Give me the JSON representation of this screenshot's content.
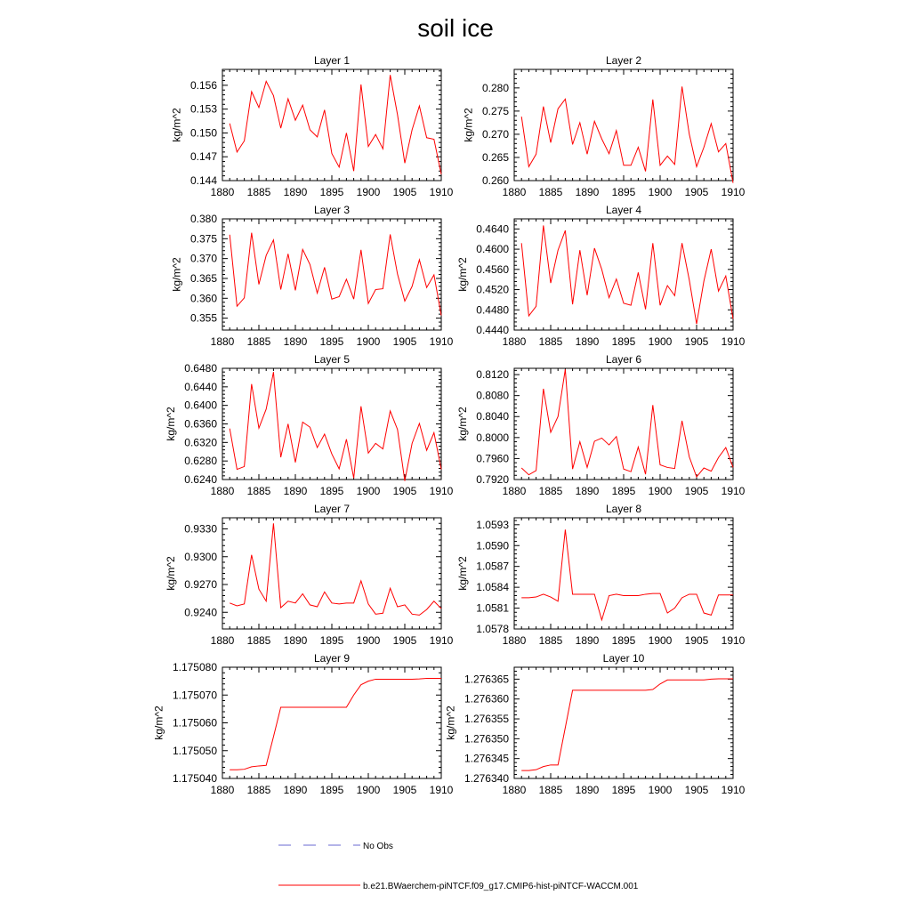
{
  "page": {
    "title": "soil ice"
  },
  "legend": {
    "obs_label": "No Obs",
    "obs_color": "#6a6ad0",
    "model_label": "b.e21.BWaerchem-piNTCF.f09_g17.CMIP6-hist-piNTCF-WACCM.001",
    "model_color": "#ff0000"
  },
  "chart_data": [
    {
      "type": "line",
      "title": "Layer 1",
      "ylabel": "kg/m^2",
      "xlim": [
        1880,
        1910
      ],
      "xticks": [
        "1880",
        "1885",
        "1890",
        "1895",
        "1900",
        "1905",
        "1910"
      ],
      "ylim": [
        0.144,
        0.158
      ],
      "yticks": [
        "0.144",
        "0.147",
        "0.150",
        "0.153",
        "0.156"
      ],
      "x": [
        1881,
        1882,
        1883,
        1884,
        1885,
        1886,
        1887,
        1888,
        1889,
        1890,
        1891,
        1892,
        1893,
        1894,
        1895,
        1896,
        1897,
        1898,
        1899,
        1900,
        1901,
        1902,
        1903,
        1904,
        1905,
        1906,
        1907,
        1908,
        1909,
        1910
      ],
      "series": [
        {
          "values": [
            0.1512,
            0.1476,
            0.149,
            0.1552,
            0.1532,
            0.1565,
            0.1547,
            0.1506,
            0.1543,
            0.1516,
            0.1535,
            0.1504,
            0.1495,
            0.1529,
            0.1474,
            0.1457,
            0.15,
            0.1452,
            0.1561,
            0.1483,
            0.1498,
            0.148,
            0.1573,
            0.1523,
            0.1462,
            0.1504,
            0.1534,
            0.1494,
            0.1492,
            0.1448
          ]
        }
      ]
    },
    {
      "type": "line",
      "title": "Layer 2",
      "ylabel": "kg/m^2",
      "xlim": [
        1880,
        1910
      ],
      "xticks": [
        "1880",
        "1885",
        "1890",
        "1895",
        "1900",
        "1905",
        "1910"
      ],
      "ylim": [
        0.26,
        0.284
      ],
      "yticks": [
        "0.260",
        "0.265",
        "0.270",
        "0.275",
        "0.280"
      ],
      "x": [
        1881,
        1882,
        1883,
        1884,
        1885,
        1886,
        1887,
        1888,
        1889,
        1890,
        1891,
        1892,
        1893,
        1894,
        1895,
        1896,
        1897,
        1898,
        1899,
        1900,
        1901,
        1902,
        1903,
        1904,
        1905,
        1906,
        1907,
        1908,
        1909,
        1910
      ],
      "series": [
        {
          "values": [
            0.2738,
            0.263,
            0.2657,
            0.276,
            0.2682,
            0.2755,
            0.2776,
            0.2678,
            0.2725,
            0.2657,
            0.2728,
            0.269,
            0.2658,
            0.2708,
            0.2633,
            0.2633,
            0.2672,
            0.262,
            0.2775,
            0.2633,
            0.2653,
            0.2635,
            0.2803,
            0.27,
            0.263,
            0.2672,
            0.2723,
            0.2662,
            0.268,
            0.2595
          ]
        }
      ]
    },
    {
      "type": "line",
      "title": "Layer 3",
      "ylabel": "kg/m^2",
      "xlim": [
        1880,
        1910
      ],
      "xticks": [
        "1880",
        "1885",
        "1890",
        "1895",
        "1900",
        "1905",
        "1910"
      ],
      "ylim": [
        0.352,
        0.38
      ],
      "yticks": [
        "0.355",
        "0.360",
        "0.365",
        "0.370",
        "0.375",
        "0.380"
      ],
      "x": [
        1881,
        1882,
        1883,
        1884,
        1885,
        1886,
        1887,
        1888,
        1889,
        1890,
        1891,
        1892,
        1893,
        1894,
        1895,
        1896,
        1897,
        1898,
        1899,
        1900,
        1901,
        1902,
        1903,
        1904,
        1905,
        1906,
        1907,
        1908,
        1909,
        1910
      ],
      "series": [
        {
          "values": [
            0.376,
            0.358,
            0.3601,
            0.3765,
            0.3635,
            0.3708,
            0.3747,
            0.3622,
            0.3712,
            0.362,
            0.3723,
            0.3685,
            0.3613,
            0.3678,
            0.3598,
            0.3604,
            0.3648,
            0.3598,
            0.3722,
            0.3587,
            0.3622,
            0.3624,
            0.3761,
            0.3661,
            0.3593,
            0.363,
            0.3697,
            0.3627,
            0.3659,
            0.3557
          ]
        }
      ]
    },
    {
      "type": "line",
      "title": "Layer 4",
      "ylabel": "kg/m^2",
      "xlim": [
        1880,
        1910
      ],
      "xticks": [
        "1880",
        "1885",
        "1890",
        "1895",
        "1900",
        "1905",
        "1910"
      ],
      "ylim": [
        0.444,
        0.466
      ],
      "yticks": [
        "0.4440",
        "0.4480",
        "0.4520",
        "0.4560",
        "0.4600",
        "0.4640"
      ],
      "x": [
        1881,
        1882,
        1883,
        1884,
        1885,
        1886,
        1887,
        1888,
        1889,
        1890,
        1891,
        1892,
        1893,
        1894,
        1895,
        1896,
        1897,
        1898,
        1899,
        1900,
        1901,
        1902,
        1903,
        1904,
        1905,
        1906,
        1907,
        1908,
        1909,
        1910
      ],
      "series": [
        {
          "values": [
            0.4612,
            0.4468,
            0.4487,
            0.4647,
            0.4533,
            0.4598,
            0.4637,
            0.4491,
            0.4598,
            0.4509,
            0.4602,
            0.456,
            0.4504,
            0.4541,
            0.4493,
            0.4489,
            0.4554,
            0.4481,
            0.4612,
            0.4489,
            0.4528,
            0.4508,
            0.4612,
            0.4539,
            0.4452,
            0.4537,
            0.46,
            0.4517,
            0.4547,
            0.4462
          ]
        }
      ]
    },
    {
      "type": "line",
      "title": "Layer 5",
      "ylabel": "kg/m^2",
      "xlim": [
        1880,
        1910
      ],
      "xticks": [
        "1880",
        "1885",
        "1890",
        "1895",
        "1900",
        "1905",
        "1910"
      ],
      "ylim": [
        0.624,
        0.648
      ],
      "yticks": [
        "0.6240",
        "0.6280",
        "0.6320",
        "0.6360",
        "0.6400",
        "0.6440",
        "0.6480"
      ],
      "x": [
        1881,
        1882,
        1883,
        1884,
        1885,
        1886,
        1887,
        1888,
        1889,
        1890,
        1891,
        1892,
        1893,
        1894,
        1895,
        1896,
        1897,
        1898,
        1899,
        1900,
        1901,
        1902,
        1903,
        1904,
        1905,
        1906,
        1907,
        1908,
        1909,
        1910
      ],
      "series": [
        {
          "values": [
            0.635,
            0.6262,
            0.6268,
            0.6446,
            0.6351,
            0.6392,
            0.6472,
            0.6288,
            0.636,
            0.6277,
            0.6364,
            0.6353,
            0.6309,
            0.6338,
            0.6295,
            0.6263,
            0.6327,
            0.6243,
            0.6398,
            0.6297,
            0.6318,
            0.6306,
            0.6388,
            0.6348,
            0.6237,
            0.6318,
            0.6361,
            0.6303,
            0.6341,
            0.6262
          ]
        }
      ]
    },
    {
      "type": "line",
      "title": "Layer 6",
      "ylabel": "kg/m^2",
      "xlim": [
        1880,
        1910
      ],
      "xticks": [
        "1880",
        "1885",
        "1890",
        "1895",
        "1900",
        "1905",
        "1910"
      ],
      "ylim": [
        0.792,
        0.8132
      ],
      "yticks": [
        "0.7920",
        "0.7960",
        "0.8000",
        "0.8040",
        "0.8080",
        "0.8120"
      ],
      "x": [
        1881,
        1882,
        1883,
        1884,
        1885,
        1886,
        1887,
        1888,
        1889,
        1890,
        1891,
        1892,
        1893,
        1894,
        1895,
        1896,
        1897,
        1898,
        1899,
        1900,
        1901,
        1902,
        1903,
        1904,
        1905,
        1906,
        1907,
        1908,
        1909,
        1910
      ],
      "series": [
        {
          "values": [
            0.7942,
            0.7929,
            0.7937,
            0.8093,
            0.801,
            0.804,
            0.813,
            0.794,
            0.7992,
            0.7943,
            0.7993,
            0.7999,
            0.7986,
            0.8002,
            0.794,
            0.7935,
            0.7982,
            0.793,
            0.8062,
            0.7948,
            0.7943,
            0.7941,
            0.8032,
            0.7963,
            0.7925,
            0.7942,
            0.7936,
            0.7962,
            0.7981,
            0.7943
          ]
        }
      ]
    },
    {
      "type": "line",
      "title": "Layer 7",
      "ylabel": "kg/m^2",
      "xlim": [
        1880,
        1910
      ],
      "xticks": [
        "1880",
        "1885",
        "1890",
        "1895",
        "1900",
        "1905",
        "1910"
      ],
      "ylim": [
        0.9222,
        0.9342
      ],
      "yticks": [
        "0.9240",
        "0.9270",
        "0.9300",
        "0.9330"
      ],
      "x": [
        1881,
        1882,
        1883,
        1884,
        1885,
        1886,
        1887,
        1888,
        1889,
        1890,
        1891,
        1892,
        1893,
        1894,
        1895,
        1896,
        1897,
        1898,
        1899,
        1900,
        1901,
        1902,
        1903,
        1904,
        1905,
        1906,
        1907,
        1908,
        1909,
        1910
      ],
      "series": [
        {
          "values": [
            0.925,
            0.9247,
            0.9249,
            0.9302,
            0.9265,
            0.9252,
            0.9336,
            0.9245,
            0.9252,
            0.925,
            0.926,
            0.9248,
            0.9246,
            0.9262,
            0.925,
            0.9249,
            0.925,
            0.925,
            0.9274,
            0.9249,
            0.9238,
            0.9239,
            0.9266,
            0.9246,
            0.9248,
            0.9238,
            0.9237,
            0.9243,
            0.9252,
            0.9244
          ]
        }
      ]
    },
    {
      "type": "line",
      "title": "Layer 8",
      "ylabel": "kg/m^2",
      "xlim": [
        1880,
        1910
      ],
      "xticks": [
        "1880",
        "1885",
        "1890",
        "1895",
        "1900",
        "1905",
        "1910"
      ],
      "ylim": [
        1.0578,
        1.0594
      ],
      "yticks": [
        "1.0578",
        "1.0581",
        "1.0584",
        "1.0587",
        "1.0590",
        "1.0593"
      ],
      "x": [
        1881,
        1882,
        1883,
        1884,
        1885,
        1886,
        1887,
        1888,
        1889,
        1890,
        1891,
        1892,
        1893,
        1894,
        1895,
        1896,
        1897,
        1898,
        1899,
        1900,
        1901,
        1902,
        1903,
        1904,
        1905,
        1906,
        1907,
        1908,
        1909,
        1910
      ],
      "series": [
        {
          "values": [
            1.05825,
            1.05825,
            1.05826,
            1.0583,
            1.05826,
            1.0582,
            1.05923,
            1.0583,
            1.0583,
            1.0583,
            1.0583,
            1.05793,
            1.05828,
            1.0583,
            1.05828,
            1.05828,
            1.05828,
            1.0583,
            1.05831,
            1.05831,
            1.05803,
            1.0581,
            1.05825,
            1.0583,
            1.0583,
            1.05803,
            1.058,
            1.05829,
            1.05829,
            1.05829
          ]
        }
      ]
    },
    {
      "type": "line",
      "title": "Layer 9",
      "ylabel": "kg/m^2",
      "xlim": [
        1880,
        1910
      ],
      "xticks": [
        "1880",
        "1885",
        "1890",
        "1895",
        "1900",
        "1905",
        "1910"
      ],
      "ylim": [
        1.17504,
        1.17508
      ],
      "yticks": [
        "1.175040",
        "1.175050",
        "1.175060",
        "1.175070",
        "1.175080"
      ],
      "x": [
        1881,
        1882,
        1883,
        1884,
        1885,
        1886,
        1887,
        1888,
        1889,
        1890,
        1891,
        1892,
        1893,
        1894,
        1895,
        1896,
        1897,
        1898,
        1899,
        1900,
        1901,
        1902,
        1903,
        1904,
        1905,
        1906,
        1907,
        1908,
        1909,
        1910
      ],
      "series": [
        {
          "values": [
            1.1750431,
            1.1750431,
            1.1750433,
            1.1750442,
            1.1750445,
            1.1750447,
            1.175055,
            1.1750656,
            1.1750656,
            1.1750656,
            1.1750656,
            1.1750656,
            1.1750656,
            1.1750656,
            1.1750656,
            1.1750656,
            1.1750656,
            1.17507,
            1.1750737,
            1.175075,
            1.1750757,
            1.1750757,
            1.1750757,
            1.1750757,
            1.1750757,
            1.1750757,
            1.1750758,
            1.175076,
            1.175076,
            1.175076
          ]
        }
      ]
    },
    {
      "type": "line",
      "title": "Layer 10",
      "ylabel": "kg/m^2",
      "xlim": [
        1880,
        1910
      ],
      "xticks": [
        "1880",
        "1885",
        "1890",
        "1895",
        "1900",
        "1905",
        "1910"
      ],
      "ylim": [
        1.27634,
        1.276368
      ],
      "yticks": [
        "1.276340",
        "1.276345",
        "1.276350",
        "1.276355",
        "1.276360",
        "1.276365"
      ],
      "x": [
        1881,
        1882,
        1883,
        1884,
        1885,
        1886,
        1887,
        1888,
        1889,
        1890,
        1891,
        1892,
        1893,
        1894,
        1895,
        1896,
        1897,
        1898,
        1899,
        1900,
        1901,
        1902,
        1903,
        1904,
        1905,
        1906,
        1907,
        1908,
        1909,
        1910
      ],
      "series": [
        {
          "values": [
            1.276342,
            1.276342,
            1.2763422,
            1.276343,
            1.2763434,
            1.2763434,
            1.2763528,
            1.2763622,
            1.2763622,
            1.2763622,
            1.2763622,
            1.2763622,
            1.2763622,
            1.2763622,
            1.2763622,
            1.2763622,
            1.2763622,
            1.2763622,
            1.2763624,
            1.2763638,
            1.2763648,
            1.2763648,
            1.2763648,
            1.2763648,
            1.2763648,
            1.2763648,
            1.276365,
            1.2763651,
            1.2763651,
            1.2763651
          ]
        }
      ]
    }
  ]
}
